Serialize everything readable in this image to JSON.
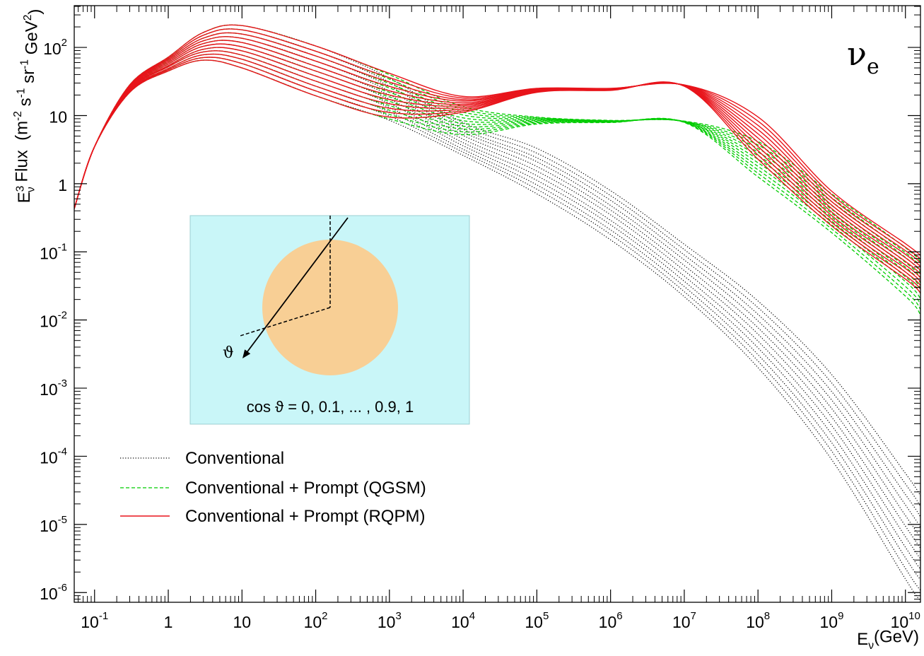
{
  "chart_data": {
    "type": "line",
    "log_x": true,
    "log_y": true,
    "y_label": [
      "E",
      "3",
      "ν",
      " Flux  (m",
      "-2",
      " s",
      "-1",
      " sr",
      "-1",
      " GeV",
      "2",
      ")"
    ],
    "x_label": [
      "E",
      "ν",
      "(GeV)"
    ],
    "annotation": [
      "ν",
      "e"
    ],
    "inset": {
      "angle_symbol": "ϑ",
      "caption": "cos ϑ = 0, 0.1, ... , 0.9, 1"
    },
    "legend": "left",
    "xlim": [
      0.053,
      16000000000.0
    ],
    "ylim": [
      7.2e-07,
      410
    ],
    "xticks": [
      {
        "value": 0.1,
        "label": "10",
        "exponent": "-1"
      },
      1,
      10,
      {
        "value": 100,
        "label": "10",
        "exponent": "2"
      },
      {
        "value": 1000,
        "label": "10",
        "exponent": "3"
      },
      {
        "value": 10000,
        "label": "10",
        "exponent": "4"
      },
      {
        "value": 100000,
        "label": "10",
        "exponent": "5"
      },
      {
        "value": 1000000,
        "label": "10",
        "exponent": "6"
      },
      {
        "value": 10000000,
        "label": "10",
        "exponent": "7"
      },
      {
        "value": 100000000,
        "label": "10",
        "exponent": "8"
      },
      {
        "value": 1000000000,
        "label": "10",
        "exponent": "9"
      },
      {
        "value": 10000000000,
        "label": "10",
        "exponent": "10"
      }
    ],
    "yticks": [
      {
        "value": 1e-06,
        "label": "10",
        "exponent": "-6"
      },
      {
        "value": 1e-05,
        "label": "10",
        "exponent": "-5"
      },
      {
        "value": 0.0001,
        "label": "10",
        "exponent": "-4"
      },
      {
        "value": 0.001,
        "label": "10",
        "exponent": "-3"
      },
      {
        "value": 0.01,
        "label": "10",
        "exponent": "-2"
      },
      {
        "value": 0.1,
        "label": "10",
        "exponent": "-1"
      },
      1,
      10,
      {
        "value": 100,
        "label": "10",
        "exponent": "2"
      }
    ],
    "x": [
      0.053,
      0.1,
      0.3,
      1,
      3,
      10,
      100,
      1000,
      10000,
      100000,
      1000000,
      10000000,
      100000000,
      1000000000,
      10000000000,
      16000000000
    ],
    "series": [
      {
        "name": "Conventional",
        "color": "#000000",
        "style": "dotted",
        "curves": [
          [
            0.43,
            3.5,
            21.9,
            45,
            65,
            50,
            19.5,
            8.5,
            2.6,
            0.71,
            0.15,
            0.022,
            0.002,
            8.9e-05,
            1.58e-06,
            7.6e-07
          ],
          [
            0.43,
            3.5,
            22.4,
            47,
            71,
            58,
            23,
            9.8,
            2.9,
            0.83,
            0.18,
            0.026,
            0.0025,
            0.000119,
            2.26e-06,
            1.08e-06
          ],
          [
            0.43,
            3.5,
            23.0,
            49,
            78,
            67,
            27,
            11.3,
            3.2,
            0.96,
            0.21,
            0.031,
            0.0031,
            0.000158,
            3.24e-06,
            1.54e-06
          ],
          [
            0.43,
            3.5,
            23.6,
            52,
            86,
            77,
            32,
            13.1,
            3.6,
            1.12,
            0.25,
            0.037,
            0.0039,
            0.000211,
            4.62e-06,
            2.2e-06
          ],
          [
            0.43,
            3.5,
            24.2,
            54,
            94,
            89,
            38,
            15.1,
            4.0,
            1.31,
            0.29,
            0.044,
            0.0049,
            0.000282,
            6.61e-06,
            3.13e-06
          ],
          [
            0.43,
            3.5,
            24.8,
            57,
            104,
            102,
            45,
            17.4,
            4.5,
            1.53,
            0.35,
            0.053,
            0.0062,
            0.000376,
            9.44e-06,
            4.47e-06
          ],
          [
            0.43,
            3.5,
            25.5,
            60,
            114,
            118,
            53,
            20,
            5.1,
            1.79,
            0.41,
            0.063,
            0.0077,
            0.000501,
            1.35e-05,
            6.37e-06
          ],
          [
            0.43,
            3.5,
            26.1,
            63,
            125,
            136,
            63,
            23,
            5.7,
            2.1,
            0.48,
            0.076,
            0.0097,
            0.000668,
            1.93e-05,
            9.08e-06
          ],
          [
            0.43,
            3.5,
            26.8,
            66,
            137,
            157,
            75,
            27,
            6.3,
            2.4,
            0.57,
            0.09,
            0.0121,
            0.000891,
            2.75e-05,
            1.29e-05
          ],
          [
            0.43,
            3.5,
            27.5,
            69,
            151,
            181,
            88,
            31,
            7.1,
            2.8,
            0.67,
            0.108,
            0.0152,
            0.00119,
            3.94e-05,
            1.85e-05
          ],
          [
            0.43,
            3.5,
            28.2,
            72,
            166,
            209,
            105,
            35.5,
            7.9,
            3.3,
            0.79,
            0.129,
            0.019,
            0.00158,
            5.62e-05,
            2.63e-05
          ]
        ]
      },
      {
        "name": "Conventional + Prompt (QGSM)",
        "color": "#00cc00",
        "style": "dashed",
        "curves": [
          [
            0.43,
            3.5,
            21.9,
            45,
            65,
            50,
            19.5,
            8.9,
            5.25,
            7.5,
            7.9,
            7.9,
            1.26,
            0.191,
            0.0224,
            0.012
          ],
          [
            0.43,
            3.5,
            22.4,
            47,
            71,
            58,
            23,
            10.4,
            5.77,
            7.7,
            8.0,
            8.0,
            1.42,
            0.217,
            0.0264,
            0.0144
          ],
          [
            0.43,
            3.5,
            23.0,
            49,
            78,
            67,
            27,
            12.0,
            6.34,
            7.9,
            8.0,
            8.0,
            1.6,
            0.248,
            0.031,
            0.0172
          ],
          [
            0.43,
            3.5,
            23.6,
            52,
            86,
            77,
            32,
            14.0,
            6.97,
            8.1,
            8.1,
            8.0,
            1.8,
            0.282,
            0.0366,
            0.0206
          ],
          [
            0.43,
            3.5,
            24.2,
            54,
            94,
            89,
            38,
            16.2,
            7.66,
            8.3,
            8.1,
            8.1,
            2.03,
            0.322,
            0.0431,
            0.0247
          ],
          [
            0.43,
            3.5,
            24.8,
            57,
            104,
            102,
            45,
            18.8,
            8.41,
            8.5,
            8.2,
            8.1,
            2.29,
            0.367,
            0.0507,
            0.0295
          ],
          [
            0.43,
            3.5,
            25.5,
            60,
            114,
            118,
            53,
            21.9,
            9.25,
            8.7,
            8.3,
            8.1,
            2.58,
            0.419,
            0.0597,
            0.0353
          ],
          [
            0.43,
            3.5,
            26.1,
            63,
            125,
            136,
            63,
            25.4,
            10.2,
            8.9,
            8.3,
            8.2,
            2.91,
            0.478,
            0.0703,
            0.0423
          ],
          [
            0.43,
            3.5,
            26.8,
            66,
            137,
            157,
            75,
            29.5,
            11.2,
            9.1,
            8.4,
            8.2,
            3.28,
            0.545,
            0.0828,
            0.0506
          ],
          [
            0.43,
            3.5,
            27.5,
            69,
            151,
            181,
            88,
            34.3,
            12.3,
            9.3,
            8.4,
            8.2,
            3.7,
            0.621,
            0.0975,
            0.0605
          ],
          [
            0.43,
            3.5,
            28.2,
            72,
            166,
            209,
            105,
            39.8,
            13.5,
            9.5,
            8.5,
            8.3,
            4.17,
            0.708,
            0.115,
            0.0724
          ]
        ]
      },
      {
        "name": "Conventional + Prompt (RQPM)",
        "color": "#e8141b",
        "style": "solid",
        "curves": [
          [
            0.43,
            3.5,
            21.9,
            45,
            65,
            50,
            19.5,
            9.5,
            11.2,
            21.9,
            23.4,
            26.9,
            2.29,
            0.24,
            0.0398,
            0.0251
          ],
          [
            0.43,
            3.5,
            22.4,
            47,
            71,
            58,
            23,
            11.1,
            11.8,
            22.2,
            23.6,
            27.0,
            2.64,
            0.27,
            0.0449,
            0.0285
          ],
          [
            0.43,
            3.5,
            23.0,
            49,
            78,
            67,
            27,
            12.8,
            12.5,
            22.5,
            23.8,
            27.2,
            3.05,
            0.303,
            0.0506,
            0.0324
          ],
          [
            0.43,
            3.5,
            23.6,
            52,
            86,
            77,
            32,
            14.9,
            13.2,
            22.8,
            23.9,
            27.3,
            3.52,
            0.341,
            0.057,
            0.0367
          ],
          [
            0.43,
            3.5,
            24.2,
            54,
            94,
            89,
            38,
            17.2,
            13.9,
            23.2,
            24.1,
            27.4,
            4.06,
            0.384,
            0.0643,
            0.0417
          ],
          [
            0.43,
            3.5,
            24.8,
            57,
            104,
            102,
            45,
            20.0,
            14.6,
            23.5,
            24.3,
            27.5,
            4.68,
            0.432,
            0.0724,
            0.0473
          ],
          [
            0.43,
            3.5,
            25.5,
            60,
            114,
            118,
            53,
            23.1,
            15.4,
            23.8,
            24.4,
            27.7,
            5.4,
            0.485,
            0.0817,
            0.0537
          ],
          [
            0.43,
            3.5,
            26.1,
            63,
            125,
            136,
            63,
            26.8,
            16.3,
            24.1,
            24.6,
            27.8,
            6.22,
            0.546,
            0.092,
            0.061
          ],
          [
            0.43,
            3.5,
            26.8,
            66,
            137,
            157,
            75,
            31.0,
            17.1,
            24.5,
            24.8,
            27.9,
            7.18,
            0.614,
            0.104,
            0.0692
          ],
          [
            0.43,
            3.5,
            27.5,
            69,
            151,
            181,
            88,
            36.0,
            18.1,
            24.8,
            24.9,
            28.1,
            8.28,
            0.69,
            0.117,
            0.0785
          ],
          [
            0.43,
            3.5,
            28.2,
            72,
            166,
            209,
            105,
            41.7,
            19.1,
            25.1,
            25.1,
            28.2,
            9.55,
            0.776,
            0.132,
            0.0891
          ]
        ]
      }
    ]
  }
}
